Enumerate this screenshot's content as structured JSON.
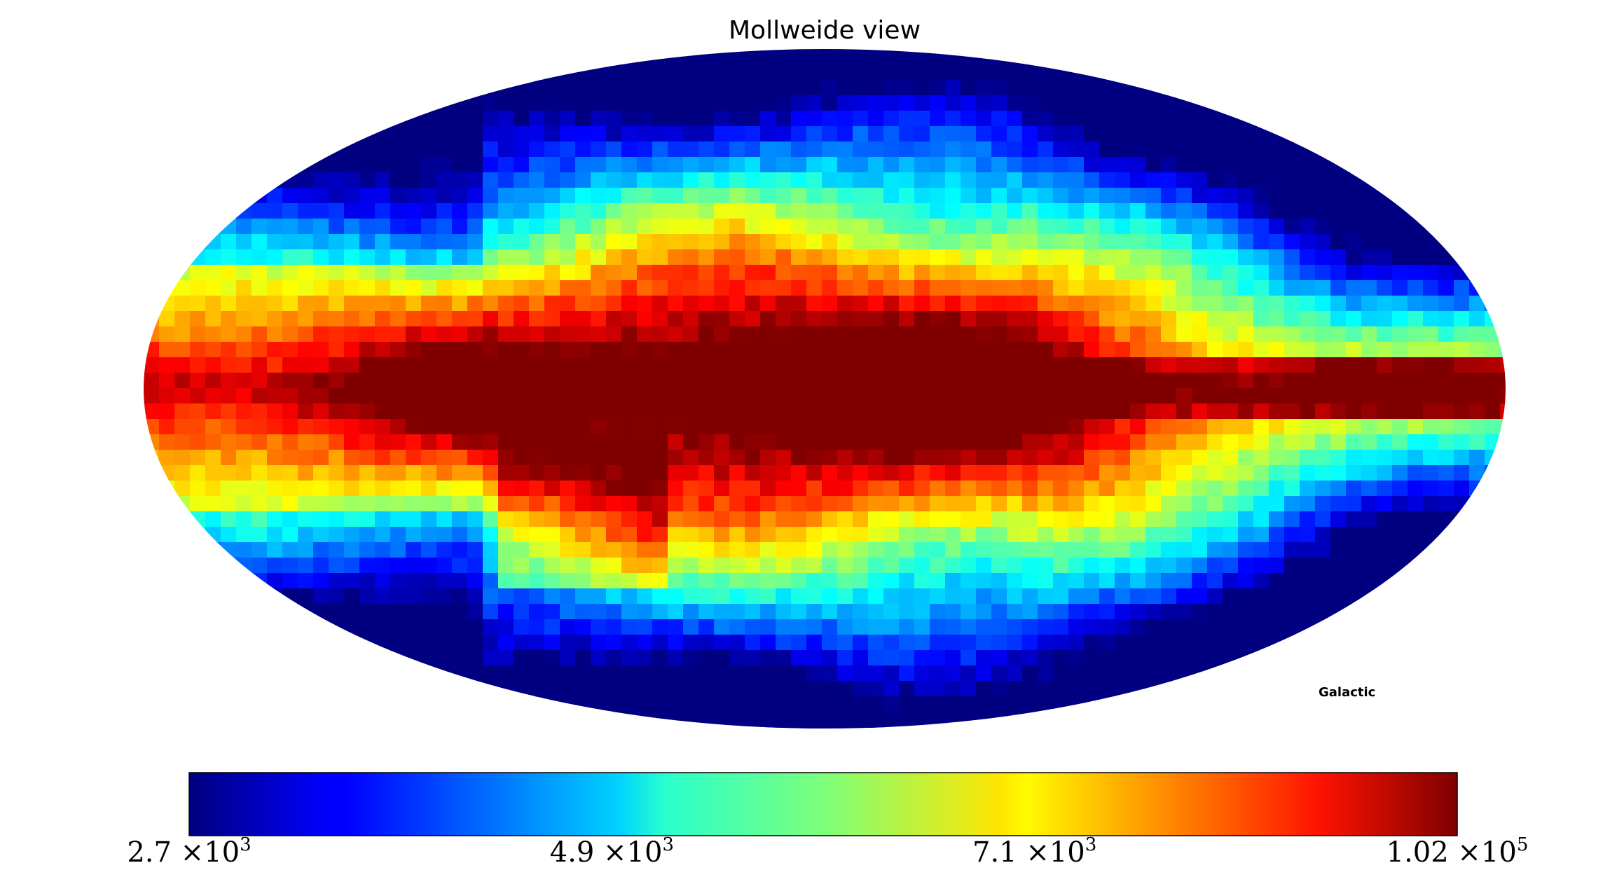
{
  "chart_data": {
    "type": "heatmap",
    "projection": "mollweide",
    "title": "Mollweide view",
    "coord_system_label": "Galactic",
    "colormap": "jet",
    "colorbar": {
      "orientation": "horizontal",
      "ticks": [
        {
          "mantissa": "2.7",
          "exponent": "3"
        },
        {
          "mantissa": "4.9",
          "exponent": "3"
        },
        {
          "mantissa": "7.1",
          "exponent": "3"
        },
        {
          "mantissa": "1.02",
          "exponent": "5"
        }
      ],
      "range": [
        2700,
        102000
      ]
    },
    "map_description": "Sky map with high values along the galactic plane, peak near galactic center",
    "features": {
      "plane_peak_value": 102000,
      "high_latitude_min_value": 2700
    }
  }
}
